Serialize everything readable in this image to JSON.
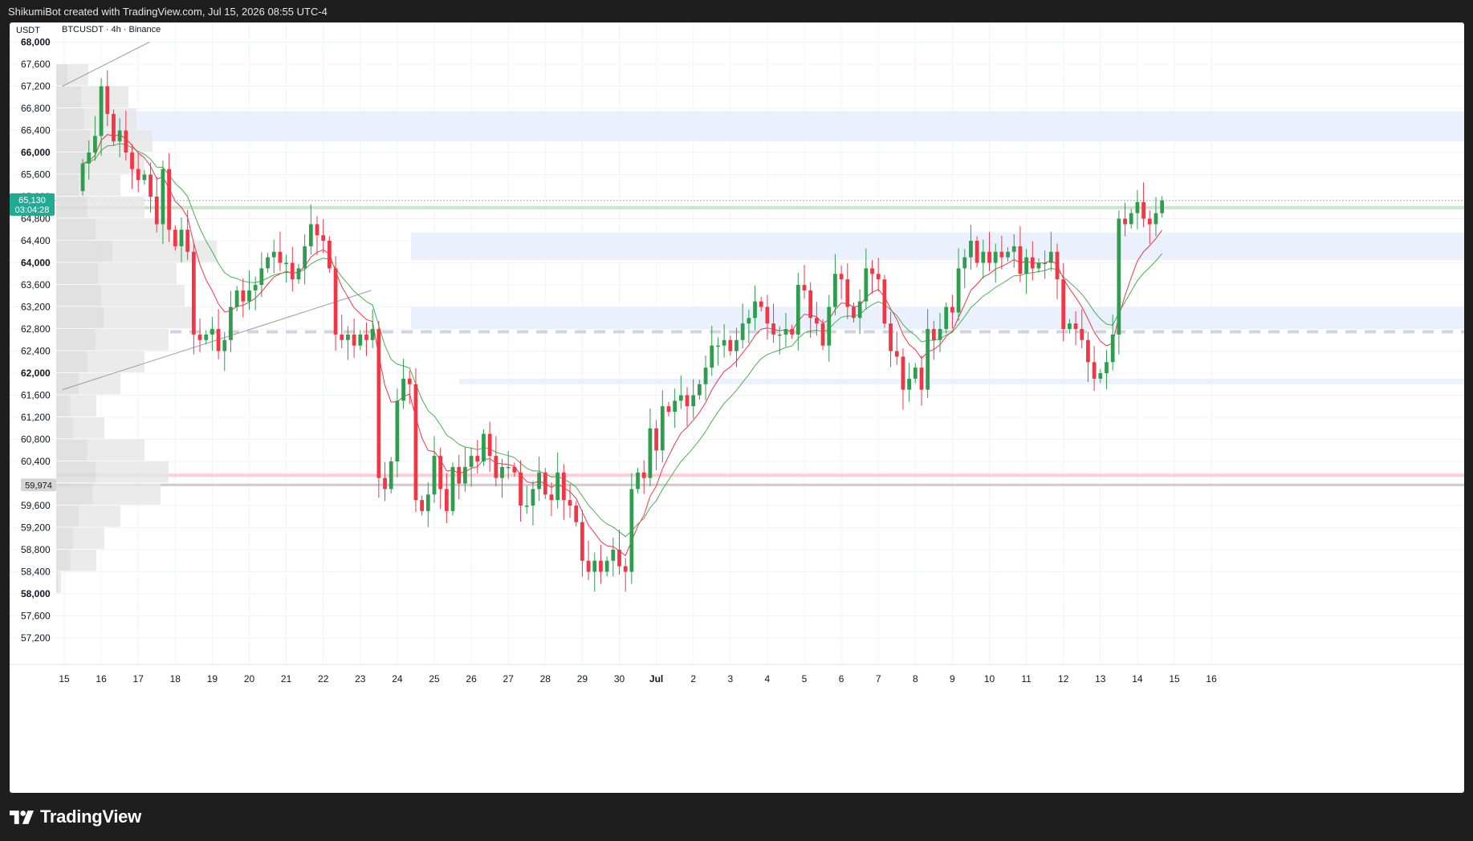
{
  "header": {
    "credit": "ShikumiBot created with TradingView.com, Jul 15, 2026 08:55 UTC-4"
  },
  "legend": {
    "currency": "USDT",
    "symbol_info": "BTCUSDT · 4h · Binance"
  },
  "footer": {
    "brand": "TradingView"
  },
  "colors": {
    "up": "#26a69a",
    "up_body": "#2e9d4e",
    "down": "#f23645",
    "ma_fast": "#f23645",
    "ma_slow": "#4caf50",
    "zone": "#eaf1fd",
    "last_price_bg": "#22ab94"
  },
  "price_label": {
    "price": "65,130",
    "countdown": "03:04:28"
  },
  "poc_label": "59,974",
  "chart_data": {
    "type": "candlestick",
    "symbol": "BTCUSDT",
    "interval": "4h",
    "exchange": "Binance",
    "ylim": [
      56900,
      68100
    ],
    "y_ticks": [
      {
        "value": 68000,
        "label": "68,000",
        "bold": true
      },
      {
        "value": 67600,
        "label": "67,600",
        "bold": false
      },
      {
        "value": 67200,
        "label": "67,200",
        "bold": false
      },
      {
        "value": 66800,
        "label": "66,800",
        "bold": false
      },
      {
        "value": 66400,
        "label": "66,400",
        "bold": false
      },
      {
        "value": 66000,
        "label": "66,000",
        "bold": true
      },
      {
        "value": 65600,
        "label": "65,600",
        "bold": false
      },
      {
        "value": 65200,
        "label": "65,200",
        "bold": false
      },
      {
        "value": 64800,
        "label": "64,800",
        "bold": false
      },
      {
        "value": 64400,
        "label": "64,400",
        "bold": false
      },
      {
        "value": 64000,
        "label": "64,000",
        "bold": true
      },
      {
        "value": 63600,
        "label": "63,600",
        "bold": false
      },
      {
        "value": 63200,
        "label": "63,200",
        "bold": false
      },
      {
        "value": 62800,
        "label": "62,800",
        "bold": false
      },
      {
        "value": 62400,
        "label": "62,400",
        "bold": false
      },
      {
        "value": 62000,
        "label": "62,000",
        "bold": true
      },
      {
        "value": 61600,
        "label": "61,600",
        "bold": false
      },
      {
        "value": 61200,
        "label": "61,200",
        "bold": false
      },
      {
        "value": 60800,
        "label": "60,800",
        "bold": false
      },
      {
        "value": 60400,
        "label": "60,400",
        "bold": false
      },
      {
        "value": 59600,
        "label": "59,600",
        "bold": false
      },
      {
        "value": 59200,
        "label": "59,200",
        "bold": false
      },
      {
        "value": 58800,
        "label": "58,800",
        "bold": false
      },
      {
        "value": 58400,
        "label": "58,400",
        "bold": false
      },
      {
        "value": 58000,
        "label": "58,000",
        "bold": true
      },
      {
        "value": 57600,
        "label": "57,600",
        "bold": false
      },
      {
        "value": 57200,
        "label": "57,200",
        "bold": false
      }
    ],
    "x_labels": [
      {
        "day": 15,
        "label": "15",
        "bold": false
      },
      {
        "day": 16,
        "label": "16",
        "bold": false
      },
      {
        "day": 17,
        "label": "17",
        "bold": false
      },
      {
        "day": 18,
        "label": "18",
        "bold": false
      },
      {
        "day": 19,
        "label": "19",
        "bold": false
      },
      {
        "day": 20,
        "label": "20",
        "bold": false
      },
      {
        "day": 21,
        "label": "21",
        "bold": false
      },
      {
        "day": 22,
        "label": "22",
        "bold": false
      },
      {
        "day": 23,
        "label": "23",
        "bold": false
      },
      {
        "day": 24,
        "label": "24",
        "bold": false
      },
      {
        "day": 25,
        "label": "25",
        "bold": false
      },
      {
        "day": 26,
        "label": "26",
        "bold": false
      },
      {
        "day": 27,
        "label": "27",
        "bold": false
      },
      {
        "day": 28,
        "label": "28",
        "bold": false
      },
      {
        "day": 29,
        "label": "29",
        "bold": false
      },
      {
        "day": 30,
        "label": "30",
        "bold": false
      },
      {
        "day": 31,
        "label": "Jul",
        "bold": true
      },
      {
        "day": 32,
        "label": "2",
        "bold": false
      },
      {
        "day": 33,
        "label": "3",
        "bold": false
      },
      {
        "day": 34,
        "label": "4",
        "bold": false
      },
      {
        "day": 35,
        "label": "5",
        "bold": false
      },
      {
        "day": 36,
        "label": "6",
        "bold": false
      },
      {
        "day": 37,
        "label": "7",
        "bold": false
      },
      {
        "day": 38,
        "label": "8",
        "bold": false
      },
      {
        "day": 39,
        "label": "9",
        "bold": false
      },
      {
        "day": 40,
        "label": "10",
        "bold": false
      },
      {
        "day": 41,
        "label": "11",
        "bold": false
      },
      {
        "day": 42,
        "label": "12",
        "bold": false
      },
      {
        "day": 43,
        "label": "13",
        "bold": false
      },
      {
        "day": 44,
        "label": "14",
        "bold": false
      },
      {
        "day": 45,
        "label": "15",
        "bold": false
      },
      {
        "day": 46,
        "label": "16",
        "bold": false
      }
    ],
    "day_range": [
      14.95,
      47.2
    ],
    "closes": [
      65800,
      66000,
      66300,
      67200,
      66700,
      66200,
      66400,
      66000,
      65700,
      65500,
      65600,
      65200,
      64700,
      65700,
      64600,
      64300,
      64600,
      64200,
      62700,
      62600,
      62700,
      62800,
      62400,
      62600,
      63200,
      63500,
      63300,
      63500,
      63600,
      63900,
      64100,
      64200,
      64000,
      64000,
      63700,
      63900,
      64300,
      64700,
      64500,
      64400,
      63900,
      62700,
      62600,
      62700,
      62500,
      62700,
      62600,
      62800,
      60100,
      59900,
      60400,
      61500,
      61900,
      61800,
      59700,
      59500,
      59800,
      60500,
      59900,
      59500,
      60300,
      60000,
      60300,
      60500,
      60400,
      60900,
      60500,
      60100,
      60300,
      60300,
      60200,
      59600,
      59600,
      59900,
      60200,
      59800,
      59700,
      60200,
      59700,
      59600,
      59300,
      58600,
      58400,
      58600,
      58400,
      58600,
      58800,
      58500,
      58400,
      59900,
      60200,
      60100,
      61000,
      60600,
      61400,
      61300,
      61500,
      61600,
      61400,
      61600,
      61800,
      62100,
      62500,
      62500,
      62600,
      62400,
      62600,
      62900,
      63000,
      63300,
      63200,
      62900,
      62700,
      62700,
      62800,
      62700,
      63600,
      63500,
      63000,
      62900,
      62500,
      63200,
      63800,
      63700,
      63200,
      63000,
      63300,
      63900,
      63800,
      63700,
      62900,
      62400,
      62300,
      61700,
      61900,
      62100,
      61700,
      62800,
      62600,
      62800,
      63200,
      63100,
      63900,
      64100,
      64400,
      64000,
      64200,
      64000,
      64200,
      64100,
      64200,
      64300,
      63800,
      64100,
      63900,
      64000,
      64000,
      64200,
      63700,
      62800,
      62900,
      62800,
      62600,
      62200,
      61900,
      62000,
      62200,
      62700,
      64800,
      64700,
      64900,
      65100,
      64800,
      64700,
      64900,
      65130
    ],
    "ma_fast_offset": 160,
    "ma_slow_offset": 420,
    "current_price": 65130,
    "countdown": "03:04:28",
    "levels": [
      {
        "type": "zone",
        "from": 66200,
        "to": 66750
      },
      {
        "type": "zone",
        "from": 64050,
        "to": 64550
      },
      {
        "type": "zone",
        "from": 62800,
        "to": 63200
      },
      {
        "type": "zone",
        "from": 61800,
        "to": 61900
      },
      {
        "type": "line",
        "price": 65000,
        "color": "#c8e6c9"
      },
      {
        "type": "line",
        "price": 60150,
        "color": "#ffcdd2"
      },
      {
        "type": "line",
        "price": 59974,
        "color": "#cccccc"
      }
    ],
    "trendlines": [
      {
        "from": [
          14.95,
          67200
        ],
        "to": [
          17.3,
          68000
        ]
      },
      {
        "from": [
          14.95,
          61700
        ],
        "to": [
          23.3,
          63500
        ]
      }
    ],
    "volume_profile": [
      {
        "price": 67400,
        "vol": 0.2
      },
      {
        "price": 67000,
        "vol": 0.45
      },
      {
        "price": 66600,
        "vol": 0.5
      },
      {
        "price": 66200,
        "vol": 0.6
      },
      {
        "price": 65800,
        "vol": 0.55
      },
      {
        "price": 65400,
        "vol": 0.4
      },
      {
        "price": 65000,
        "vol": 0.55
      },
      {
        "price": 64600,
        "vol": 0.7
      },
      {
        "price": 64200,
        "vol": 1.0
      },
      {
        "price": 63800,
        "vol": 0.75
      },
      {
        "price": 63400,
        "vol": 0.8
      },
      {
        "price": 63000,
        "vol": 0.85
      },
      {
        "price": 62600,
        "vol": 0.7
      },
      {
        "price": 62200,
        "vol": 0.55
      },
      {
        "price": 61800,
        "vol": 0.4
      },
      {
        "price": 61400,
        "vol": 0.25
      },
      {
        "price": 61000,
        "vol": 0.3
      },
      {
        "price": 60600,
        "vol": 0.55
      },
      {
        "price": 60200,
        "vol": 0.7
      },
      {
        "price": 59800,
        "vol": 0.65
      },
      {
        "price": 59400,
        "vol": 0.4
      },
      {
        "price": 59000,
        "vol": 0.3
      },
      {
        "price": 58600,
        "vol": 0.25
      },
      {
        "price": 58200,
        "vol": 0.03
      }
    ]
  }
}
